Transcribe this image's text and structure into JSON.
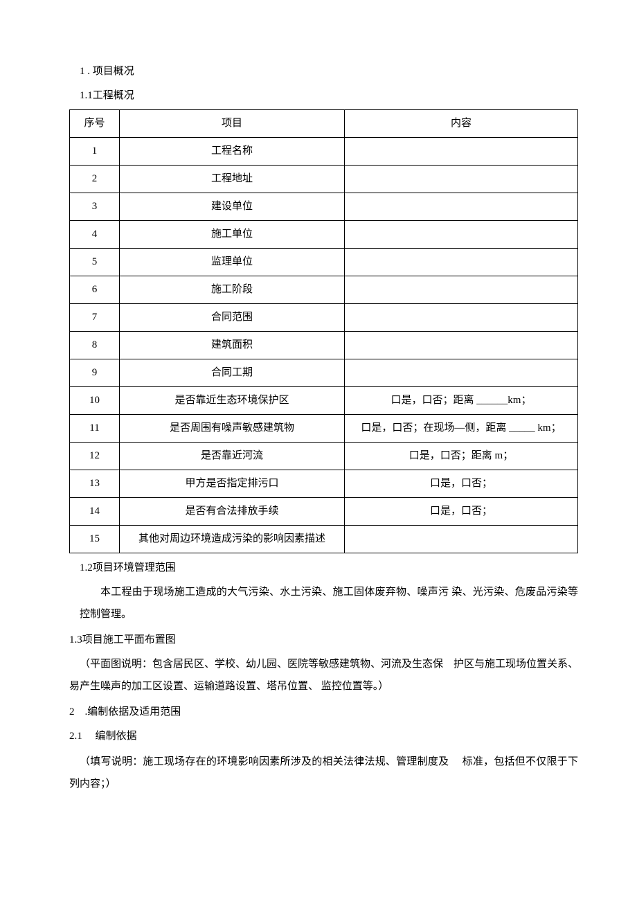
{
  "heading_1": "1 . 项目概况",
  "heading_1_1": "1.1工程概况",
  "table": {
    "headers": {
      "seq": "序号",
      "item": "项目",
      "content": "内容"
    },
    "rows": [
      {
        "seq": "1",
        "item": "工程名称",
        "content": ""
      },
      {
        "seq": "2",
        "item": "工程地址",
        "content": ""
      },
      {
        "seq": "3",
        "item": "建设单位",
        "content": ""
      },
      {
        "seq": "4",
        "item": "施工单位",
        "content": ""
      },
      {
        "seq": "5",
        "item": "监理单位",
        "content": ""
      },
      {
        "seq": "6",
        "item": "施工阶段",
        "content": ""
      },
      {
        "seq": "7",
        "item": "合同范围",
        "content": ""
      },
      {
        "seq": "8",
        "item": "建筑面积",
        "content": ""
      },
      {
        "seq": "9",
        "item": "合同工期",
        "content": ""
      },
      {
        "seq": "10",
        "item": "是否靠近生态环境保护区",
        "content": "口是，口否；距离 ______km；"
      },
      {
        "seq": "11",
        "item": "是否周围有噪声敏感建筑物",
        "content": "口是，口否；在现场—侧，距离 _____ km；"
      },
      {
        "seq": "12",
        "item": "是否靠近河流",
        "content": "口是，口否；距离  m；"
      },
      {
        "seq": "13",
        "item": "甲方是否指定排污口",
        "content": "口是，口否；"
      },
      {
        "seq": "14",
        "item": "是否有合法排放手续",
        "content": "口是，口否；"
      },
      {
        "seq": "15",
        "item": "其他对周边环境造成污染的影响因素描述",
        "content": ""
      }
    ]
  },
  "heading_1_2": "1.2项目环境管理范围",
  "para_1_2": "本工程由于现场施工造成的大气污染、水土污染、施工固体废弃物、噪声污 染、光污染、危废品污染等控制管理。",
  "heading_1_3": "1.3项目施工平面布置图",
  "para_1_3": "（平面图说明：包含居民区、学校、幼儿园、医院等敏感建筑物、河流及生态保　护区与施工现场位置关系、易产生噪声的加工区设置、运输道路设置、塔吊位置、 监控位置等。）",
  "heading_2": "2　.编制依据及适用范围",
  "heading_2_1": "2.1　 编制依据",
  "para_2_1": "（填写说明：施工现场存在的环境影响因素所涉及的相关法律法规、管理制度及　 标准，包括但不仅限于下列内容；）"
}
